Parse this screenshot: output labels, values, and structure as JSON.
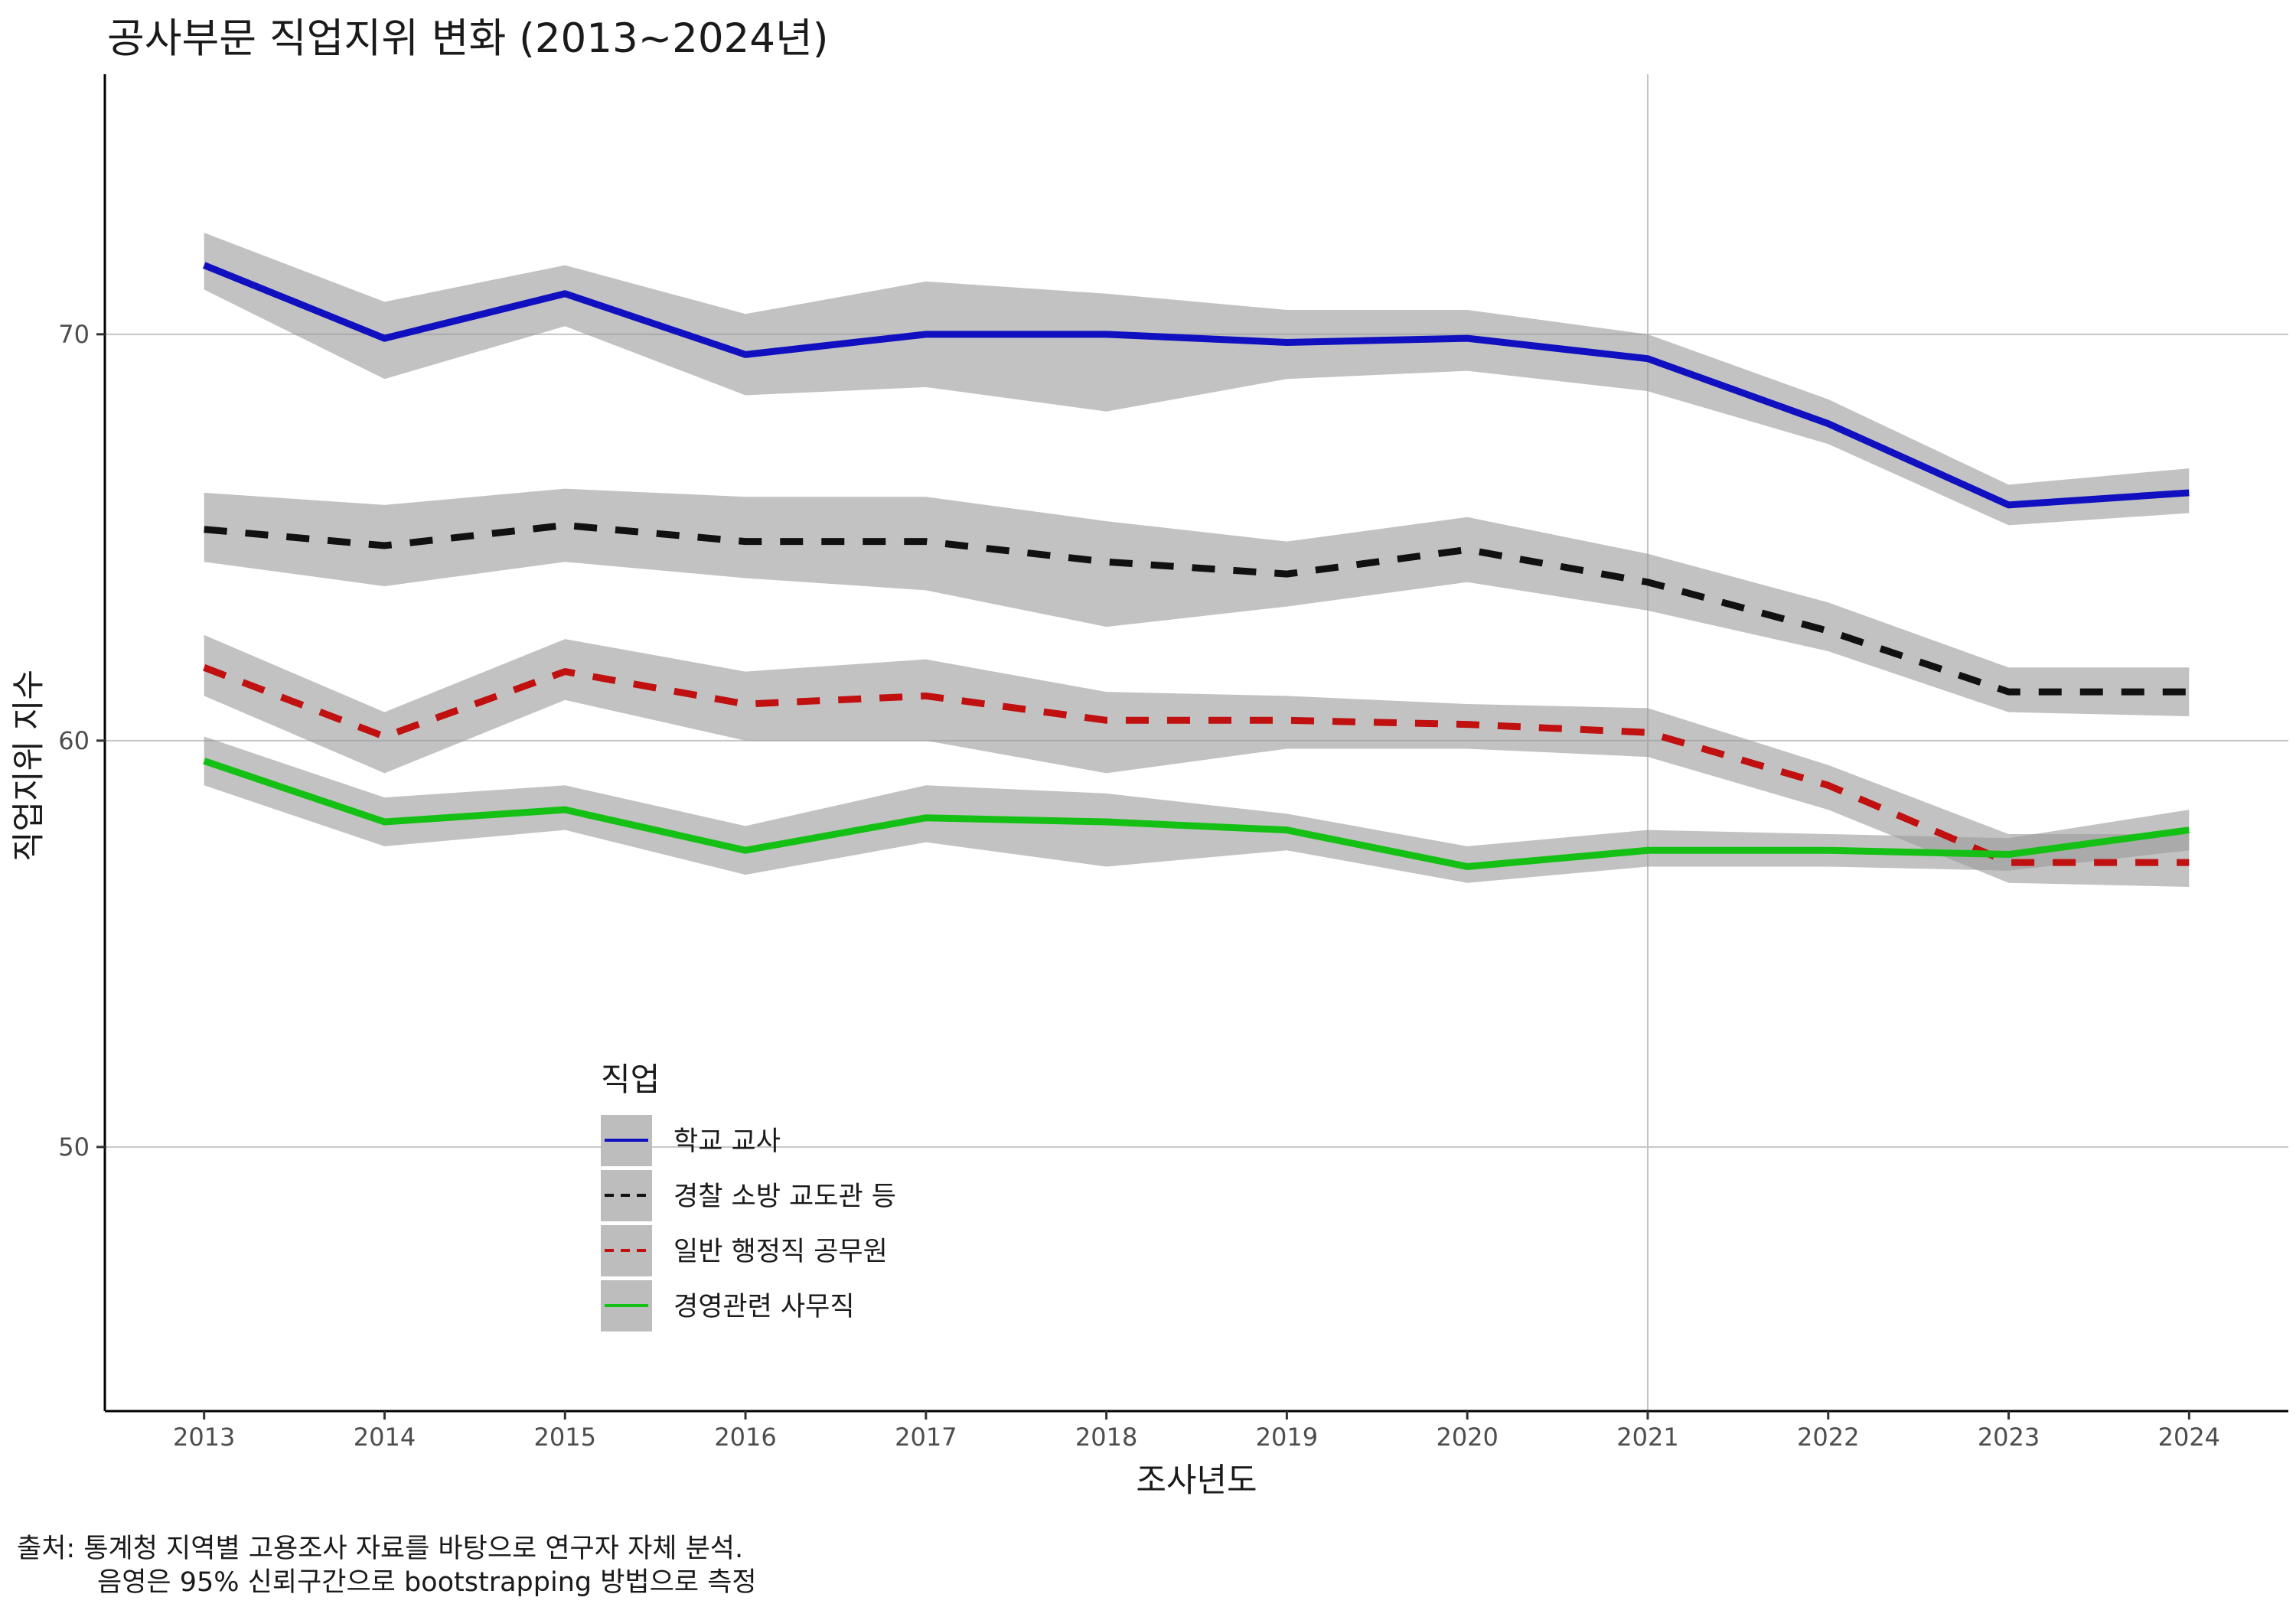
{
  "title": "공사부문 직업지위 변화 (2013~2024년)",
  "caption": {
    "line1": "출처: 통계청 지역별 고용조사 자료를 바탕으로 연구자 자체 분석.",
    "line2": "음영은 95% 신뢰구간으로 bootstrapping 방법으로 측정"
  },
  "chart_data": {
    "type": "line",
    "xlabel": "조사년도",
    "ylabel": "직업지위 지수",
    "x": [
      2013,
      2014,
      2015,
      2016,
      2017,
      2018,
      2019,
      2020,
      2021,
      2022,
      2023,
      2024
    ],
    "xlim": [
      2012.45,
      2024.55
    ],
    "ylim": [
      43.5,
      76.4
    ],
    "y_ticks": [
      50,
      60,
      70
    ],
    "reference_line_x": 2021,
    "grid": "major horizontal at y ticks",
    "legend": {
      "title": "직업",
      "placement": "inside-bottom-left"
    },
    "series": [
      {
        "name": "학교 교사",
        "color": "#1010c0",
        "linetype": "solid",
        "values": [
          71.7,
          69.9,
          71.0,
          69.5,
          70.0,
          70.0,
          69.8,
          69.9,
          69.4,
          67.8,
          65.8,
          66.1
        ],
        "lower": [
          71.1,
          68.9,
          70.2,
          68.5,
          68.7,
          68.1,
          68.9,
          69.1,
          68.6,
          67.3,
          65.3,
          65.6
        ],
        "upper": [
          72.5,
          70.8,
          71.7,
          70.5,
          71.3,
          71.0,
          70.6,
          70.6,
          70.0,
          68.4,
          66.3,
          66.7
        ]
      },
      {
        "name": "경찰 소방 교도관 등",
        "color": "#111111",
        "linetype": "dashed",
        "values": [
          65.2,
          64.8,
          65.3,
          64.9,
          64.9,
          64.4,
          64.1,
          64.7,
          63.9,
          62.7,
          61.2,
          61.2
        ],
        "lower": [
          64.4,
          63.8,
          64.4,
          64.0,
          63.7,
          62.8,
          63.3,
          63.9,
          63.2,
          62.2,
          60.7,
          60.6
        ],
        "upper": [
          66.1,
          65.8,
          66.2,
          66.0,
          66.0,
          65.4,
          64.9,
          65.5,
          64.6,
          63.4,
          61.8,
          61.8
        ]
      },
      {
        "name": "일반 행정직 공무원",
        "color": "#c01010",
        "linetype": "dashed",
        "values": [
          61.8,
          60.1,
          61.7,
          60.9,
          61.1,
          60.5,
          60.5,
          60.4,
          60.2,
          58.9,
          57.0,
          57.0
        ],
        "lower": [
          61.1,
          59.2,
          61.0,
          60.0,
          60.0,
          59.2,
          59.8,
          59.8,
          59.6,
          58.3,
          56.5,
          56.4
        ],
        "upper": [
          62.6,
          60.7,
          62.5,
          61.7,
          62.0,
          61.2,
          61.1,
          60.9,
          60.8,
          59.4,
          57.7,
          57.7
        ]
      },
      {
        "name": "경영관련 사무직",
        "color": "#15c015",
        "linetype": "solid",
        "values": [
          59.5,
          58.0,
          58.3,
          57.3,
          58.1,
          58.0,
          57.8,
          56.9,
          57.3,
          57.3,
          57.2,
          57.8
        ],
        "lower": [
          58.9,
          57.4,
          57.8,
          56.7,
          57.5,
          56.9,
          57.3,
          56.5,
          56.9,
          56.9,
          56.8,
          57.3
        ],
        "upper": [
          60.1,
          58.6,
          58.9,
          57.9,
          58.9,
          58.7,
          58.2,
          57.4,
          57.8,
          57.7,
          57.6,
          58.3
        ]
      }
    ]
  }
}
